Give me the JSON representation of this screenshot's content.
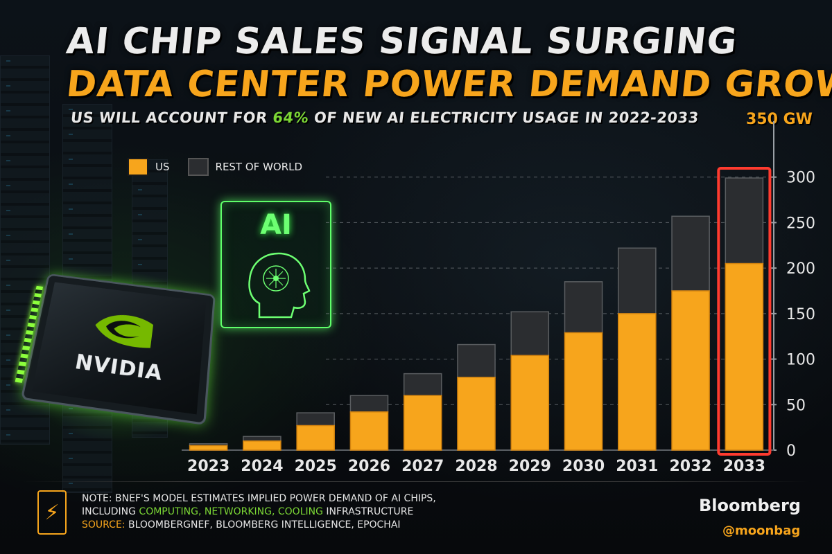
{
  "header": {
    "title_line1": "AI CHIP SALES SIGNAL SURGING",
    "title_line2": "DATA CENTER POWER DEMAND GROWTH",
    "subtitle_pre": "US WILL ACCOUNT FOR ",
    "subtitle_highlight": "64%",
    "subtitle_post": " OF NEW AI ELECTRICITY USAGE IN 2022-2033"
  },
  "illustration": {
    "chip_brand": "NVIDIA",
    "chip_logo_icon": "nvidia-eye-logo",
    "ai_label": "AI",
    "ai_icon": "ai-head-circuit-icon"
  },
  "legend": [
    {
      "label": "US",
      "color": "#f7a51c"
    },
    {
      "label": "REST OF WORLD",
      "color": "#2b2d30"
    }
  ],
  "units_label": "350 GW",
  "footer": {
    "note_icon": "lightning-bolt-icon",
    "note_line1": "NOTE: BNEF'S MODEL ESTIMATES IMPLIED POWER DEMAND OF AI CHIPS,",
    "note_line2_pre": "INCLUDING ",
    "note_line2_items": "COMPUTING, NETWORKING, COOLING",
    "note_line2_post": " INFRASTRUCTURE",
    "source_label": "SOURCE:",
    "source_text": " BLOOMBERGNEF, BLOOMBERG INTELLIGENCE, EPOCHAI",
    "brand": "Bloomberg",
    "handle": "@moonbag"
  },
  "chart_data": {
    "type": "bar",
    "stacked": true,
    "categories": [
      "2023",
      "2024",
      "2025",
      "2026",
      "2027",
      "2028",
      "2029",
      "2030",
      "2031",
      "2032",
      "2033"
    ],
    "series": [
      {
        "name": "US",
        "values": [
          5,
          10,
          27,
          42,
          60,
          80,
          104,
          129,
          150,
          175,
          205
        ],
        "color": "#f7a51c"
      },
      {
        "name": "REST OF WORLD",
        "values": [
          2,
          5,
          14,
          18,
          24,
          36,
          48,
          56,
          72,
          82,
          94
        ],
        "color": "#2b2d30"
      }
    ],
    "yticks": [
      0,
      50,
      100,
      150,
      200,
      250,
      300
    ],
    "ylim": [
      0,
      350
    ],
    "highlight_category": "2033",
    "highlight_color": "#ff3b2f",
    "xlabel": "",
    "ylabel": ""
  }
}
